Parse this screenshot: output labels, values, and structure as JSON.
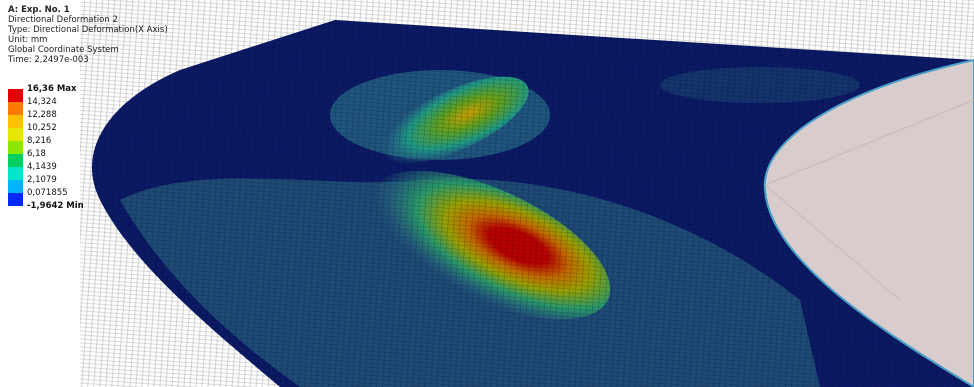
{
  "header": {
    "title": "A: Exp. No. 1",
    "lines": [
      "Directional Deformation 2",
      "Type: Directional Deformation(X Axis)",
      "Unit: mm",
      "Global Coordinate System",
      "Time: 2,2497e-003"
    ]
  },
  "legend": {
    "labels": [
      "16,36 Max",
      "14,324",
      "12,288",
      "10,252",
      "8,216",
      "6,18",
      "4,1439",
      "2,1079",
      "0,071855",
      "-1,9642 Min"
    ]
  }
}
